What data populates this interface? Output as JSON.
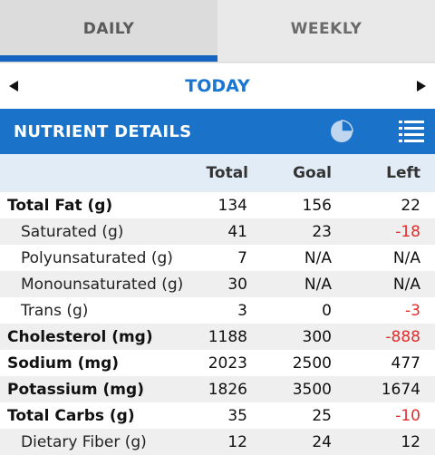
{
  "tabs": [
    {
      "label": "DAILY",
      "active": true
    },
    {
      "label": "WEEKLY",
      "active": false
    }
  ],
  "date_nav": {
    "label": "TODAY",
    "prev_icon": "chevron-left-icon",
    "next_icon": "chevron-right-icon"
  },
  "section": {
    "title": "NUTRIENT DETAILS",
    "chart_icon": "pie-chart-icon",
    "list_icon": "list-view-icon"
  },
  "columns": {
    "total": "Total",
    "goal": "Goal",
    "left": "Left"
  },
  "colors": {
    "accent": "#1a73c8",
    "negative": "#e52b2b"
  },
  "rows": [
    {
      "name": "Total Fat (g)",
      "total": "134",
      "goal": "156",
      "left": "22"
    },
    {
      "name": "Saturated (g)",
      "total": "41",
      "goal": "23",
      "left": "-18"
    },
    {
      "name": "Polyunsaturated (g)",
      "total": "7",
      "goal": "N/A",
      "left": "N/A"
    },
    {
      "name": "Monounsaturated (g)",
      "total": "30",
      "goal": "N/A",
      "left": "N/A"
    },
    {
      "name": "Trans (g)",
      "total": "3",
      "goal": "0",
      "left": "-3"
    },
    {
      "name": "Cholesterol (mg)",
      "total": "1188",
      "goal": "300",
      "left": "-888"
    },
    {
      "name": "Sodium (mg)",
      "total": "2023",
      "goal": "2500",
      "left": "477"
    },
    {
      "name": "Potassium (mg)",
      "total": "1826",
      "goal": "3500",
      "left": "1674"
    },
    {
      "name": "Total Carbs (g)",
      "total": "35",
      "goal": "25",
      "left": "-10"
    },
    {
      "name": "Dietary Fiber (g)",
      "total": "12",
      "goal": "24",
      "left": "12"
    }
  ]
}
